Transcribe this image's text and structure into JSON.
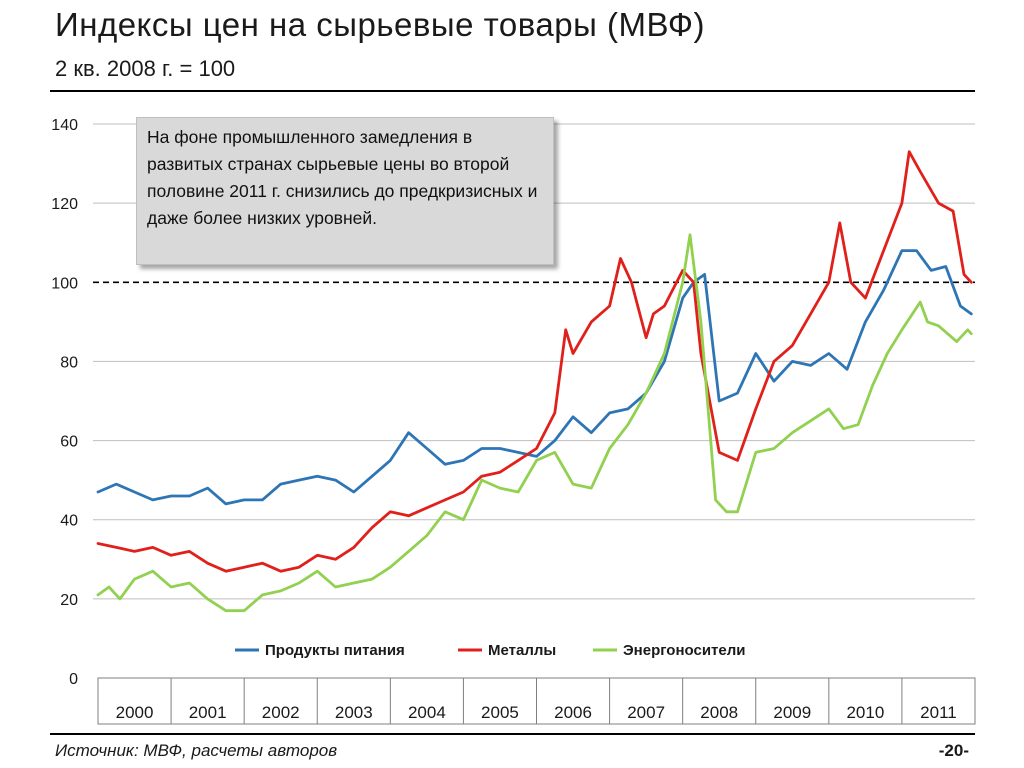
{
  "header": {
    "title": "Индексы цен на сырьевые товары (МВФ)",
    "subtitle": "2 кв. 2008 г. = 100"
  },
  "annotation": "На фоне промышленного замедления в развитых странах сырьевые цены во второй половине 2011 г. снизились до предкризисных и даже более низких уровней.",
  "footer": {
    "source": "Источник: МВФ, расчеты авторов",
    "page": "-20-"
  },
  "colors": {
    "food": "#2e75b6",
    "metals": "#e0201b",
    "energy": "#92d050",
    "grid": "#bfbfbf"
  },
  "chart_data": {
    "type": "line",
    "title": "",
    "xlabel": "",
    "ylabel": "",
    "ylim": [
      0,
      140
    ],
    "yticks": [
      0,
      20,
      40,
      60,
      80,
      100,
      120,
      140
    ],
    "categories": [
      "2000",
      "2001",
      "2002",
      "2003",
      "2004",
      "2005",
      "2006",
      "2007",
      "2008",
      "2009",
      "2010",
      "2011"
    ],
    "reference_line": 100,
    "grid": true,
    "legend_position": "bottom",
    "series": [
      {
        "name": "Продукты питания",
        "color": "#2e75b6",
        "x": [
          2000.0,
          2000.25,
          2000.5,
          2000.75,
          2001.0,
          2001.25,
          2001.5,
          2001.75,
          2002.0,
          2002.25,
          2002.5,
          2002.75,
          2003.0,
          2003.25,
          2003.5,
          2003.75,
          2004.0,
          2004.25,
          2004.5,
          2004.75,
          2005.0,
          2005.25,
          2005.5,
          2005.75,
          2006.0,
          2006.25,
          2006.5,
          2006.75,
          2007.0,
          2007.25,
          2007.5,
          2007.75,
          2008.0,
          2008.15,
          2008.3,
          2008.5,
          2008.75,
          2009.0,
          2009.25,
          2009.5,
          2009.75,
          2010.0,
          2010.25,
          2010.5,
          2010.75,
          2011.0,
          2011.2,
          2011.4,
          2011.6,
          2011.8,
          2011.95
        ],
        "y": [
          47,
          49,
          47,
          45,
          46,
          46,
          48,
          44,
          45,
          45,
          49,
          50,
          51,
          50,
          47,
          51,
          55,
          62,
          58,
          54,
          55,
          58,
          58,
          57,
          56,
          60,
          66,
          62,
          67,
          68,
          72,
          80,
          96,
          100,
          102,
          70,
          72,
          82,
          75,
          80,
          79,
          82,
          78,
          90,
          98,
          108,
          108,
          103,
          104,
          94,
          92
        ]
      },
      {
        "name": "Металлы",
        "color": "#e0201b",
        "x": [
          2000.0,
          2000.25,
          2000.5,
          2000.75,
          2001.0,
          2001.25,
          2001.5,
          2001.75,
          2002.0,
          2002.25,
          2002.5,
          2002.75,
          2003.0,
          2003.25,
          2003.5,
          2003.75,
          2004.0,
          2004.25,
          2004.5,
          2004.75,
          2005.0,
          2005.25,
          2005.5,
          2005.75,
          2006.0,
          2006.25,
          2006.4,
          2006.5,
          2006.75,
          2007.0,
          2007.15,
          2007.3,
          2007.5,
          2007.6,
          2007.75,
          2008.0,
          2008.15,
          2008.25,
          2008.5,
          2008.75,
          2009.0,
          2009.25,
          2009.5,
          2009.75,
          2010.0,
          2010.15,
          2010.3,
          2010.5,
          2010.75,
          2011.0,
          2011.1,
          2011.25,
          2011.5,
          2011.7,
          2011.85,
          2011.95
        ],
        "y": [
          34,
          33,
          32,
          33,
          31,
          32,
          29,
          27,
          28,
          29,
          27,
          28,
          31,
          30,
          33,
          38,
          42,
          41,
          43,
          45,
          47,
          51,
          52,
          55,
          58,
          67,
          88,
          82,
          90,
          94,
          106,
          100,
          86,
          92,
          94,
          103,
          100,
          82,
          57,
          55,
          68,
          80,
          84,
          92,
          100,
          115,
          100,
          96,
          108,
          120,
          133,
          128,
          120,
          118,
          102,
          100
        ]
      },
      {
        "name": "Энергоносители",
        "color": "#92d050",
        "x": [
          2000.0,
          2000.15,
          2000.3,
          2000.5,
          2000.75,
          2001.0,
          2001.25,
          2001.5,
          2001.75,
          2002.0,
          2002.25,
          2002.5,
          2002.75,
          2003.0,
          2003.25,
          2003.5,
          2003.75,
          2004.0,
          2004.25,
          2004.5,
          2004.75,
          2005.0,
          2005.25,
          2005.5,
          2005.75,
          2006.0,
          2006.25,
          2006.5,
          2006.75,
          2007.0,
          2007.25,
          2007.5,
          2007.75,
          2008.0,
          2008.1,
          2008.25,
          2008.45,
          2008.6,
          2008.75,
          2009.0,
          2009.25,
          2009.5,
          2009.75,
          2010.0,
          2010.2,
          2010.4,
          2010.6,
          2010.8,
          2011.0,
          2011.25,
          2011.35,
          2011.5,
          2011.75,
          2011.9,
          2011.95
        ],
        "y": [
          21,
          23,
          20,
          25,
          27,
          23,
          24,
          20,
          17,
          17,
          21,
          22,
          24,
          27,
          23,
          24,
          25,
          28,
          32,
          36,
          42,
          40,
          50,
          48,
          47,
          55,
          57,
          49,
          48,
          58,
          64,
          72,
          82,
          100,
          112,
          90,
          45,
          42,
          42,
          57,
          58,
          62,
          65,
          68,
          63,
          64,
          74,
          82,
          88,
          95,
          90,
          89,
          85,
          88,
          87
        ]
      }
    ]
  }
}
